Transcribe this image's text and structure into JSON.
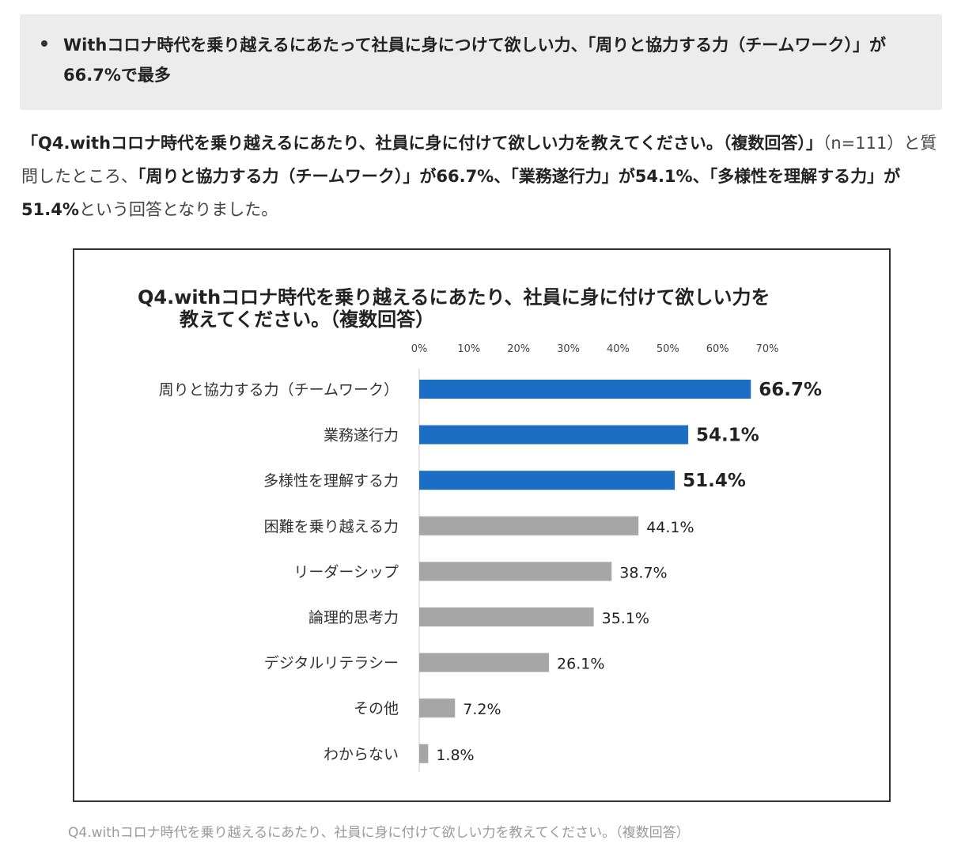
{
  "summary": {
    "text": "Withコロナ時代を乗り越えるにあたって社員に身につけて欲しい力、「周りと協力する力（チームワーク）」が66.7%で最多"
  },
  "intro": {
    "question": "「Q4.withコロナ時代を乗り越えるにあたり、社員に身に付けて欲しい力を教えてください。（複数回答）」",
    "sample": "（n=111）と質問したところ、",
    "result1": "「周りと協力する力（チームワーク）」が66.7%、",
    "result2": "「業務遂行力」が54.1%、",
    "result3": "「多様性を理解する力」が51.4%",
    "ending": "という回答となりました。"
  },
  "chart_data": {
    "type": "bar",
    "orientation": "horizontal",
    "title": "Q4.withコロナ時代を乗り越えるにあたり、社員に身に付けて欲しい力を教えてください。（複数回答）",
    "title_lines": [
      "Q4.withコロナ時代を乗り越えるにあたり、社員に身に付けて欲しい力を",
      "教えてください。（複数回答）"
    ],
    "categories": [
      "周りと協力する力（チームワーク）",
      "業務遂行力",
      "多様性を理解する力",
      "困難を乗り越える力",
      "リーダーシップ",
      "論理的思考力",
      "デジタルリテラシー",
      "その他",
      "わからない"
    ],
    "values": [
      66.7,
      54.1,
      51.4,
      44.1,
      38.7,
      35.1,
      26.1,
      7.2,
      1.8
    ],
    "value_labels": [
      "66.7%",
      "54.1%",
      "51.4%",
      "44.1%",
      "38.7%",
      "35.1%",
      "26.1%",
      "7.2%",
      "1.8%"
    ],
    "highlight": [
      true,
      true,
      true,
      false,
      false,
      false,
      false,
      false,
      false
    ],
    "xlim": [
      0,
      70
    ],
    "ticks": [
      0,
      10,
      20,
      30,
      40,
      50,
      60,
      70
    ],
    "tick_labels": [
      "0%",
      "10%",
      "20%",
      "30%",
      "40%",
      "50%",
      "60%",
      "70%"
    ],
    "axis_position": "top",
    "grid": false,
    "colors": {
      "highlight": "#1c6dc4",
      "normal": "#a6a6a6"
    }
  },
  "caption": {
    "text": "Q4.withコロナ時代を乗り越えるにあたり、社員に身に付けて欲しい力を教えてください。（複数回答）"
  }
}
